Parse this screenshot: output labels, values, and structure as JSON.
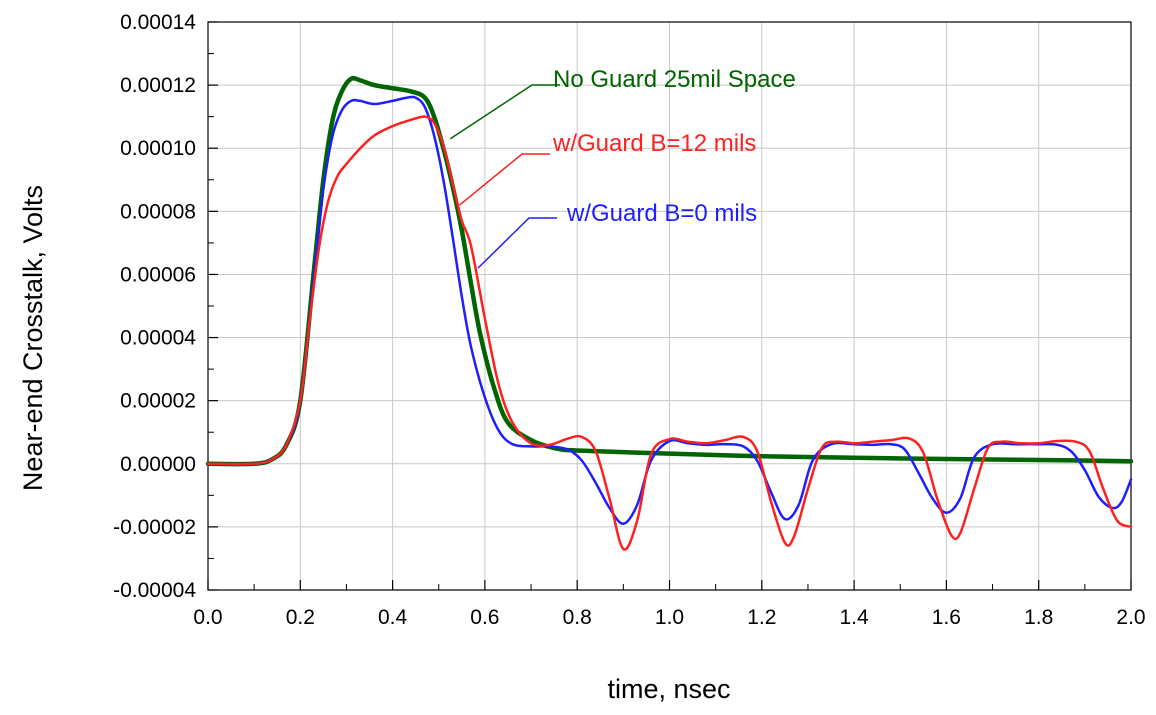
{
  "chart_data": {
    "type": "line",
    "title": "",
    "xlabel": "time, nsec",
    "ylabel": "Near-end Crosstalk, Volts",
    "xlim": [
      0.0,
      2.0
    ],
    "ylim": [
      -4e-05,
      0.00014
    ],
    "x_ticks": [
      "0.0",
      "0.2",
      "0.4",
      "0.6",
      "0.8",
      "1.0",
      "1.2",
      "1.4",
      "1.6",
      "1.8",
      "2.0"
    ],
    "y_ticks": [
      "-0.00004",
      "-0.00002",
      "0.00000",
      "0.00002",
      "0.00004",
      "0.00006",
      "0.00008",
      "0.00010",
      "0.00012",
      "0.00014"
    ],
    "grid": true,
    "legend": "inline labels with leader lines",
    "series": [
      {
        "name": "No Guard 25mil Space",
        "color": "#006400",
        "x": [
          0,
          0.1,
          0.14,
          0.17,
          0.2,
          0.23,
          0.25,
          0.27,
          0.29,
          0.31,
          0.33,
          0.36,
          0.4,
          0.44,
          0.47,
          0.49,
          0.51,
          0.53,
          0.55,
          0.57,
          0.59,
          0.62,
          0.65,
          0.7,
          0.75,
          0.8,
          1.0,
          1.2,
          1.4,
          1.6,
          1.8,
          2.0
        ],
        "y": [
          0,
          0,
          1.5e-06,
          6e-06,
          2e-05,
          6.2e-05,
          9e-05,
          0.000109,
          0.000118,
          0.000122,
          0.0001215,
          0.00012,
          0.000119,
          0.000118,
          0.000116,
          0.00011,
          0.0001,
          8.8e-05,
          7.4e-05,
          5.7e-05,
          4.1e-05,
          2.4e-05,
          1.3e-05,
          7.5e-06,
          5e-06,
          4.2e-06,
          3.2e-06,
          2.4e-06,
          1.9e-06,
          1.5e-06,
          1.2e-06,
          8e-07
        ]
      },
      {
        "name": "w/Guard B=12 mils",
        "color": "#ff2020",
        "x": [
          0,
          0.1,
          0.14,
          0.17,
          0.2,
          0.22,
          0.24,
          0.26,
          0.28,
          0.3,
          0.33,
          0.36,
          0.4,
          0.44,
          0.47,
          0.49,
          0.51,
          0.53,
          0.55,
          0.57,
          0.6,
          0.63,
          0.66,
          0.7,
          0.74,
          0.78,
          0.81,
          0.84,
          0.87,
          0.9,
          0.93,
          0.96,
          1.0,
          1.04,
          1.08,
          1.12,
          1.16,
          1.19,
          1.22,
          1.25,
          1.27,
          1.3,
          1.33,
          1.36,
          1.4,
          1.44,
          1.48,
          1.52,
          1.55,
          1.58,
          1.61,
          1.63,
          1.66,
          1.69,
          1.72,
          1.76,
          1.8,
          1.84,
          1.88,
          1.91,
          1.94,
          1.97,
          2.0
        ],
        "y": [
          0,
          0,
          1.5e-06,
          6e-06,
          2e-05,
          4.5e-05,
          6.8e-05,
          8.3e-05,
          9.1e-05,
          9.5e-05,
          0.0001,
          0.000104,
          0.000107,
          0.000109,
          0.00011,
          0.000108,
          0.000101,
          8.9e-05,
          7.7e-05,
          6.9e-05,
          4.6e-05,
          2.5e-05,
          1.3e-05,
          6.5e-06,
          6e-06,
          8e-06,
          8.5e-06,
          4e-06,
          -1.1e-05,
          -2.7e-05,
          -1.8e-05,
          3e-06,
          7.8e-06,
          7e-06,
          6.5e-06,
          7.5e-06,
          8.5e-06,
          4e-06,
          -1.2e-05,
          -2.5e-05,
          -2.3e-05,
          -8e-06,
          5e-06,
          7e-06,
          6.5e-06,
          7e-06,
          7.5e-06,
          8e-06,
          3.5e-06,
          -1.1e-05,
          -2.25e-05,
          -2.2e-05,
          -8e-06,
          5e-06,
          7e-06,
          6.5e-06,
          6.5e-06,
          7.2e-06,
          7e-06,
          4e-06,
          -8e-06,
          -1.8e-05,
          -2e-05
        ]
      },
      {
        "name": "w/Guard B=0 mils",
        "color": "#1e1eff",
        "x": [
          0,
          0.1,
          0.14,
          0.17,
          0.2,
          0.23,
          0.25,
          0.27,
          0.29,
          0.31,
          0.33,
          0.36,
          0.4,
          0.43,
          0.45,
          0.47,
          0.49,
          0.51,
          0.53,
          0.55,
          0.57,
          0.6,
          0.63,
          0.66,
          0.7,
          0.74,
          0.78,
          0.81,
          0.84,
          0.87,
          0.9,
          0.93,
          0.96,
          1.0,
          1.04,
          1.08,
          1.12,
          1.16,
          1.19,
          1.22,
          1.25,
          1.28,
          1.31,
          1.35,
          1.4,
          1.44,
          1.48,
          1.51,
          1.54,
          1.57,
          1.6,
          1.63,
          1.66,
          1.7,
          1.75,
          1.8,
          1.84,
          1.87,
          1.9,
          1.93,
          1.96,
          1.98,
          2.0
        ],
        "y": [
          0,
          0,
          1.5e-06,
          6e-06,
          2e-05,
          6e-05,
          8.7e-05,
          0.000104,
          0.000112,
          0.000115,
          0.000115,
          0.000114,
          0.000115,
          0.000116,
          0.000116,
          0.000113,
          0.000104,
          9e-05,
          7.2e-05,
          5.3e-05,
          3.7e-05,
          2.1e-05,
          1.05e-05,
          6.2e-06,
          5.5e-06,
          5.5e-06,
          4.5e-06,
          1e-06,
          -6e-06,
          -1.4e-05,
          -1.9e-05,
          -1.3e-05,
          1e-06,
          7.2e-06,
          6.5e-06,
          6e-06,
          6.2e-06,
          5.5e-06,
          1e-06,
          -9e-06,
          -1.75e-05,
          -1.3e-05,
          1e-06,
          6.2e-06,
          6.2e-06,
          6e-06,
          6.2e-06,
          4.5e-06,
          -3e-06,
          -1.1e-05,
          -1.55e-05,
          -1.1e-05,
          2e-06,
          6.2e-06,
          6.2e-06,
          6.2e-06,
          6e-06,
          4e-06,
          -2e-06,
          -1.05e-05,
          -1.4e-05,
          -1.2e-05,
          -5e-06
        ]
      }
    ],
    "annotations": [
      {
        "text": "No Guard 25mil Space",
        "series": "No Guard 25mil Space",
        "color": "#006400"
      },
      {
        "text": "w/Guard B=12 mils",
        "series": "w/Guard B=12 mils",
        "color": "#ff2020"
      },
      {
        "text": "w/Guard B=0 mils",
        "series": "w/Guard B=0 mils",
        "color": "#1e1eff"
      }
    ]
  }
}
